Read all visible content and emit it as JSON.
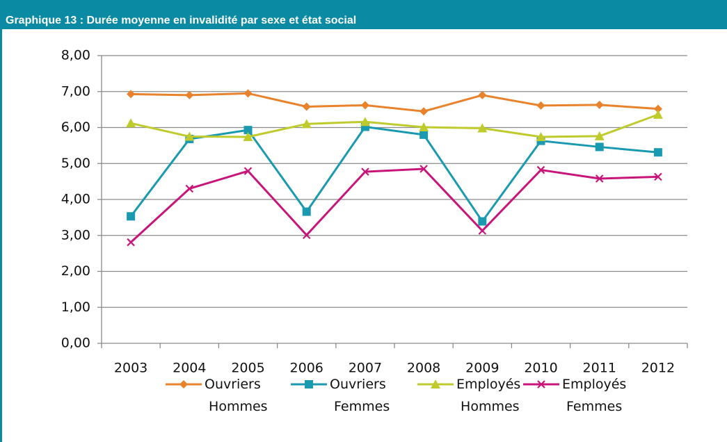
{
  "chart_data": {
    "type": "line",
    "title": "Graphique 13 : Durée moyenne en invalidité par sexe et état social",
    "categories": [
      "2003",
      "2004",
      "2005",
      "2006",
      "2007",
      "2008",
      "2009",
      "2010",
      "2011",
      "2012"
    ],
    "series": [
      {
        "name": "Ouvriers Hommes",
        "color": "#e8822b",
        "marker": "diamond",
        "values": [
          6.93,
          6.9,
          6.95,
          6.58,
          6.62,
          6.45,
          6.9,
          6.61,
          6.63,
          6.52
        ]
      },
      {
        "name": "Ouvriers Femmes",
        "color": "#1a9ab0",
        "marker": "square",
        "values": [
          3.53,
          5.68,
          5.93,
          3.66,
          6.02,
          5.8,
          3.39,
          5.63,
          5.46,
          5.31
        ]
      },
      {
        "name": "Employés Hommes",
        "color": "#bfcb2c",
        "marker": "triangle",
        "values": [
          6.12,
          5.75,
          5.74,
          6.1,
          6.16,
          6.01,
          5.98,
          5.74,
          5.76,
          6.36
        ]
      },
      {
        "name": "Employés Femmes",
        "color": "#c8157a",
        "marker": "x",
        "values": [
          2.81,
          4.3,
          4.79,
          3.01,
          4.77,
          4.85,
          3.13,
          4.82,
          4.58,
          4.63
        ]
      }
    ],
    "ylim": [
      0,
      8
    ],
    "yticks": [
      {
        "value": 0,
        "label": "0,00"
      },
      {
        "value": 1,
        "label": "1,00"
      },
      {
        "value": 2,
        "label": "2,00"
      },
      {
        "value": 3,
        "label": "3,00"
      },
      {
        "value": 4,
        "label": "4,00"
      },
      {
        "value": 5,
        "label": "5,00"
      },
      {
        "value": 6,
        "label": "6,00"
      },
      {
        "value": 7,
        "label": "7,00"
      },
      {
        "value": 8,
        "label": "8,00"
      }
    ],
    "grid": true,
    "legend": "bottom"
  }
}
